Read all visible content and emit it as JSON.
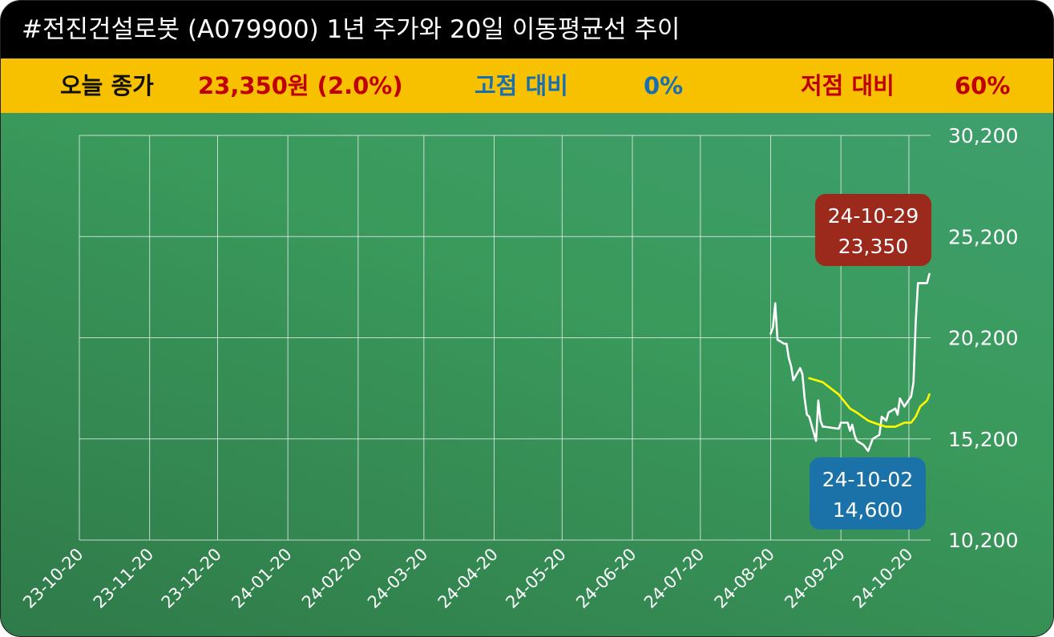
{
  "header": {
    "title": "#전진건설로봇 (A079900) 1년 주가와 20일 이동평균선 추이"
  },
  "summary": {
    "close_label": "오늘 종가",
    "close_value": "23,350원 (2.0%)",
    "high_label": "고점 대비",
    "high_value": "0%",
    "low_label": "저점 대비",
    "low_value": "60%"
  },
  "colors": {
    "title_bg": "#000000",
    "info_bg": "#f7c100",
    "close_value": "#c00000",
    "high": "#1a6fb0",
    "low": "#c00000",
    "price_line": "#ffffff",
    "ma_line": "#ffff00",
    "high_box": "#9b2a1c",
    "low_box": "#1a72a8"
  },
  "chart_data": {
    "type": "line",
    "x_ticks": [
      "23-10-20",
      "23-11-20",
      "23-12-20",
      "24-01-20",
      "24-02-20",
      "24-03-20",
      "24-04-20",
      "24-05-20",
      "24-06-20",
      "24-07-20",
      "24-08-20",
      "24-09-20",
      "24-10-20"
    ],
    "y_ticks": [
      "10,200",
      "15,200",
      "20,200",
      "25,200",
      "30,200"
    ],
    "ylim": [
      10200,
      30200
    ],
    "xlim": [
      "2023-10-20",
      "2024-10-29"
    ],
    "series": [
      {
        "values": [
          [
            "2024-08-20",
            20400
          ],
          [
            "2024-08-21",
            20700
          ],
          [
            "2024-08-22",
            21900
          ],
          [
            "2024-08-23",
            20100
          ],
          [
            "2024-08-26",
            19900
          ],
          [
            "2024-08-27",
            19900
          ],
          [
            "2024-08-28",
            19200
          ],
          [
            "2024-08-29",
            18800
          ],
          [
            "2024-08-30",
            18100
          ],
          [
            "2024-09-02",
            18700
          ],
          [
            "2024-09-03",
            18400
          ],
          [
            "2024-09-04",
            17200
          ],
          [
            "2024-09-05",
            16400
          ],
          [
            "2024-09-06",
            16300
          ],
          [
            "2024-09-09",
            15100
          ],
          [
            "2024-09-10",
            17100
          ],
          [
            "2024-09-11",
            16100
          ],
          [
            "2024-09-12",
            15800
          ],
          [
            "2024-09-13",
            15800
          ],
          [
            "2024-09-19",
            15700
          ],
          [
            "2024-09-20",
            16000
          ],
          [
            "2024-09-23",
            16000
          ],
          [
            "2024-09-24",
            15600
          ],
          [
            "2024-09-25",
            15900
          ],
          [
            "2024-09-26",
            15400
          ],
          [
            "2024-09-27",
            15100
          ],
          [
            "2024-09-30",
            14900
          ],
          [
            "2024-10-02",
            14600
          ],
          [
            "2024-10-04",
            15200
          ],
          [
            "2024-10-07",
            15400
          ],
          [
            "2024-10-08",
            16300
          ],
          [
            "2024-10-10",
            16100
          ],
          [
            "2024-10-11",
            16500
          ],
          [
            "2024-10-14",
            16700
          ],
          [
            "2024-10-15",
            16400
          ],
          [
            "2024-10-16",
            17200
          ],
          [
            "2024-10-17",
            17000
          ],
          [
            "2024-10-18",
            16800
          ],
          [
            "2024-10-21",
            17300
          ],
          [
            "2024-10-22",
            18000
          ],
          [
            "2024-10-23",
            21000
          ],
          [
            "2024-10-24",
            22900
          ],
          [
            "2024-10-25",
            22900
          ],
          [
            "2024-10-28",
            22900
          ],
          [
            "2024-10-29",
            23350
          ]
        ]
      },
      {
        "values": [
          [
            "2024-09-06",
            18200
          ],
          [
            "2024-09-12",
            18000
          ],
          [
            "2024-09-19",
            17400
          ],
          [
            "2024-09-24",
            16700
          ],
          [
            "2024-09-27",
            16500
          ],
          [
            "2024-10-02",
            16100
          ],
          [
            "2024-10-07",
            15900
          ],
          [
            "2024-10-10",
            15800
          ],
          [
            "2024-10-14",
            15800
          ],
          [
            "2024-10-16",
            15900
          ],
          [
            "2024-10-18",
            16000
          ],
          [
            "2024-10-21",
            16000
          ],
          [
            "2024-10-23",
            16300
          ],
          [
            "2024-10-25",
            16800
          ],
          [
            "2024-10-28",
            17100
          ],
          [
            "2024-10-29",
            17400
          ]
        ]
      }
    ],
    "annotations": [
      {
        "kind": "high",
        "date": "24-10-29",
        "value": "23,350"
      },
      {
        "kind": "low",
        "date": "24-10-02",
        "value": "14,600"
      }
    ],
    "grid": true
  }
}
